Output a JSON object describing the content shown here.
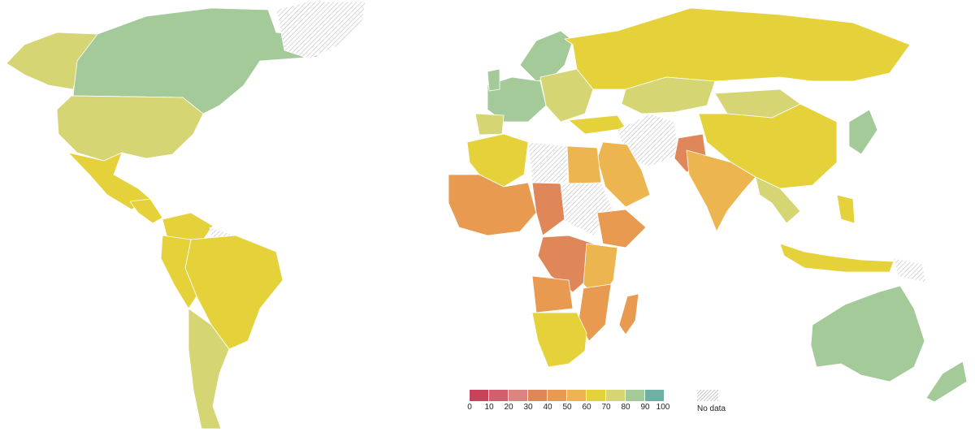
{
  "legend": {
    "ticks": [
      "0",
      "10",
      "20",
      "30",
      "40",
      "50",
      "60",
      "70",
      "80",
      "90",
      "100"
    ],
    "colors": [
      "#c8425a",
      "#d25f6d",
      "#dc8580",
      "#e0875a",
      "#e89a50",
      "#edb550",
      "#e5d23b",
      "#d5d574",
      "#a3ca98",
      "#6fb0a4"
    ],
    "no_data_label": "No data"
  },
  "palette": {
    "green": "#a3ca98",
    "olive": "#d5d574",
    "yellow": "#e5d23b",
    "gold": "#edb550",
    "orange": "#e89a50",
    "deep_orange": "#e0875a",
    "no_data_hatch": "#c9c9c9"
  }
}
